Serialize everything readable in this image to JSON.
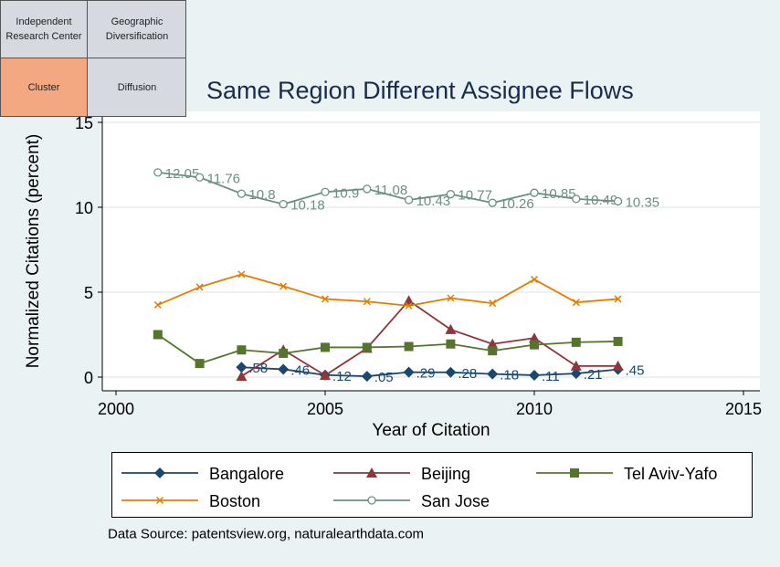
{
  "tabs": [
    {
      "label": "Independent Research Center",
      "active": false
    },
    {
      "label": "Geographic Diversification",
      "active": false
    },
    {
      "label": "Cluster",
      "active": true
    },
    {
      "label": "Diffusion",
      "active": false
    }
  ],
  "source_note": "Data Source: patentsview.org, naturalearthdata.com",
  "colors": {
    "Bangalore": "#1a476f",
    "Beijing": "#90353b",
    "Tel Aviv-Yafo": "#55752f",
    "Boston": "#e37e00",
    "San Jose": "#6e8e84",
    "title": "#1a2b4c",
    "active_tab": "#f4a882",
    "tab": "#d7d9e0",
    "page_background": "#eaf2f3"
  },
  "chart_data": {
    "type": "line",
    "title": "Same Region Different Assignee Flows",
    "xlabel": "Year of Citation",
    "ylabel": "Normalized Citations (percent)",
    "xlim": [
      2000,
      2015
    ],
    "ylim": [
      -0.6,
      15.3
    ],
    "xticks": [
      2000,
      2005,
      2010,
      2015
    ],
    "yticks": [
      0,
      5,
      10,
      15
    ],
    "grid": true,
    "legend_position": "bottom",
    "series": [
      {
        "name": "Bangalore",
        "marker": "diamond",
        "x": [
          2003,
          2004,
          2005,
          2006,
          2007,
          2008,
          2009,
          2010,
          2011,
          2012
        ],
        "y": [
          0.58,
          0.46,
          0.12,
          0.05,
          0.29,
          0.28,
          0.18,
          0.11,
          0.21,
          0.45
        ],
        "labels": [
          ".58",
          ".46",
          ".12",
          ".05",
          ".29",
          ".28",
          ".18",
          ".11",
          ".21",
          ".45"
        ]
      },
      {
        "name": "Beijing",
        "marker": "triangle",
        "x": [
          2003,
          2004,
          2005,
          2006,
          2007,
          2008,
          2009,
          2010,
          2011,
          2012
        ],
        "y": [
          0.05,
          1.6,
          0.1,
          1.7,
          4.5,
          2.8,
          1.95,
          2.3,
          0.65,
          0.65
        ]
      },
      {
        "name": "Tel Aviv-Yafo",
        "marker": "square",
        "x": [
          2001,
          2002,
          2003,
          2004,
          2005,
          2006,
          2007,
          2008,
          2009,
          2010,
          2011,
          2012
        ],
        "y": [
          2.5,
          0.8,
          1.6,
          1.4,
          1.75,
          1.75,
          1.8,
          1.95,
          1.55,
          1.9,
          2.05,
          2.1
        ]
      },
      {
        "name": "Boston",
        "marker": "x",
        "x": [
          2001,
          2002,
          2003,
          2004,
          2005,
          2006,
          2007,
          2008,
          2009,
          2010,
          2011,
          2012
        ],
        "y": [
          4.25,
          5.3,
          6.05,
          5.35,
          4.6,
          4.45,
          4.2,
          4.65,
          4.35,
          5.75,
          4.4,
          4.6
        ]
      },
      {
        "name": "San Jose",
        "marker": "circle",
        "x": [
          2001,
          2002,
          2003,
          2004,
          2005,
          2006,
          2007,
          2008,
          2009,
          2010,
          2011,
          2012
        ],
        "y": [
          12.05,
          11.76,
          10.8,
          10.18,
          10.9,
          11.08,
          10.43,
          10.77,
          10.26,
          10.85,
          10.49,
          10.35
        ],
        "labels": [
          "12.05",
          "11.76",
          "10.8",
          "10.18",
          "10.9",
          "11.08",
          "10.43",
          "10.77",
          "10.26",
          "10.85",
          "10.49",
          "10.35"
        ]
      }
    ]
  }
}
